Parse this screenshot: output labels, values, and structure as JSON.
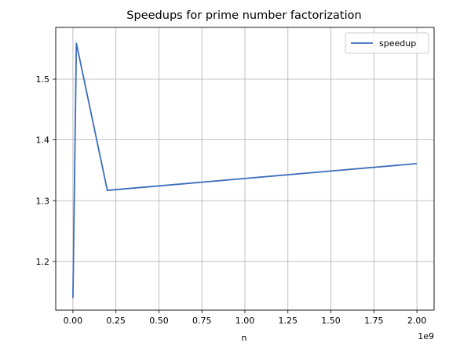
{
  "chart_data": {
    "type": "line",
    "title": "Speedups for prime number factorization",
    "xlabel": "n",
    "ylabel": "",
    "x_scale_label": "1e9",
    "xlim": [
      -100000000.0,
      2100000000.0
    ],
    "ylim": [
      1.12,
      1.585
    ],
    "xticks": [
      0,
      250000000.0,
      500000000.0,
      750000000.0,
      1000000000.0,
      1250000000.0,
      1500000000.0,
      1750000000.0,
      2000000000.0
    ],
    "xtick_labels": [
      "0.00",
      "0.25",
      "0.50",
      "0.75",
      "1.00",
      "1.25",
      "1.50",
      "1.75",
      "2.00"
    ],
    "yticks": [
      1.2,
      1.3,
      1.4,
      1.5
    ],
    "ytick_labels": [
      "1.2",
      "1.3",
      "1.4",
      "1.5"
    ],
    "grid": true,
    "legend_position": "top-right",
    "series": [
      {
        "name": "speedup",
        "color": "#3b6dbb",
        "x": [
          0,
          20000000,
          200000000,
          2000000000
        ],
        "y": [
          1.14,
          1.559,
          1.317,
          1.361
        ]
      }
    ]
  }
}
